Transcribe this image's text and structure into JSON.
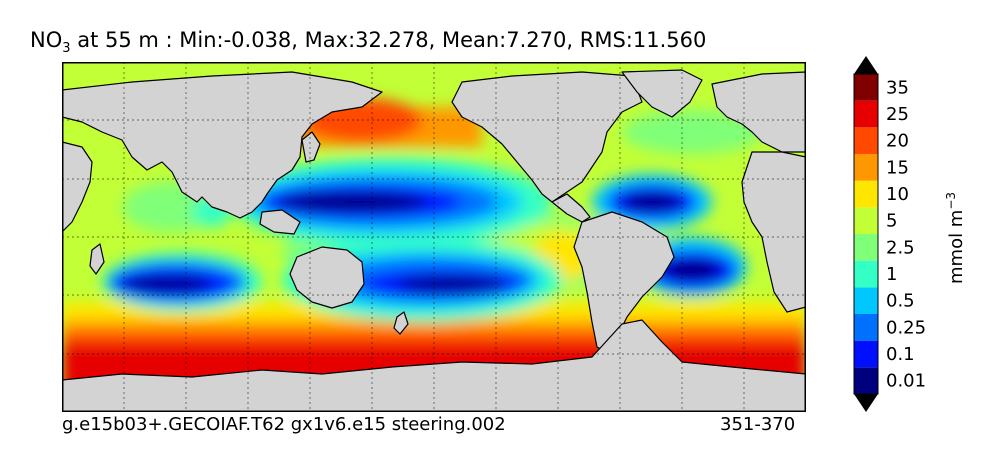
{
  "title": {
    "prefix": "NO",
    "subscript": "3",
    "text": " at 55 m : Min:-0.038, Max:32.278, Mean:7.270, RMS:11.560"
  },
  "footer": {
    "run_id": "g.e15b03+.GECOIAF.T62 gx1v6.e15 steering.002",
    "years": "351-370"
  },
  "colorbar": {
    "unit_label": "mmol m",
    "unit_exponent": "−3",
    "ticks": [
      "0.01",
      "0.1",
      "0.25",
      "0.5",
      "1",
      "2.5",
      "5",
      "10",
      "15",
      "20",
      "25",
      "35"
    ],
    "colors": [
      "#00007f",
      "#0010ff",
      "#0070ff",
      "#00c8ff",
      "#34ffc4",
      "#80ff78",
      "#c2ff36",
      "#ffe600",
      "#ff9800",
      "#ff4800",
      "#e60000",
      "#800000"
    ],
    "under_color": "#000000",
    "over_color": "#000000"
  },
  "map": {
    "land_color": "#d3d3d3",
    "grid": true
  }
}
